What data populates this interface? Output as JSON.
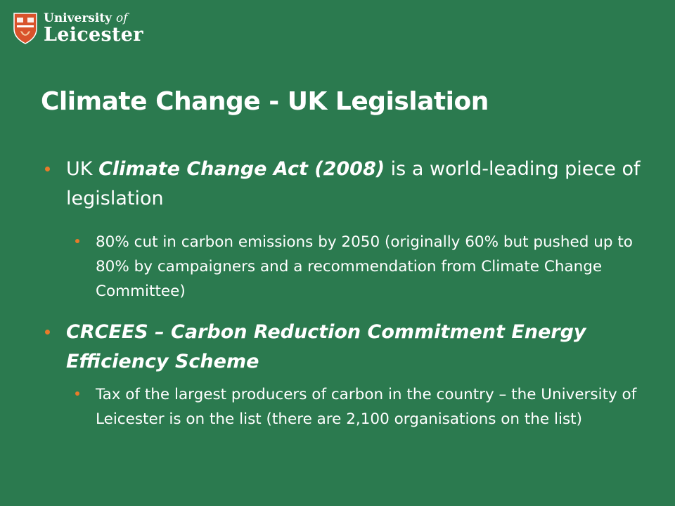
{
  "logo": {
    "line1_main": "University",
    "line1_of": "of",
    "line2": "Leicester"
  },
  "slide": {
    "title": "Climate Change - UK Legislation",
    "b1_pre": "UK ",
    "b1_em": "Climate Change Act (2008)",
    "b1_post": " is a world-leading piece of legislation",
    "b1_sub": "80% cut in carbon emissions by 2050 (originally 60% but pushed up to 80% by campaigners and a recommendation from Climate Change Committee)",
    "b2_em": "CRCEES – Carbon Reduction Commitment Energy Efficiency Scheme",
    "b2_sub": "Tax of the largest producers of carbon in the country – the University of Leicester is on the list (there are 2,100 organisations on the list)"
  },
  "colors": {
    "background": "#2b7a4f",
    "bullet": "#e87b2a",
    "shield": "#d9532b"
  }
}
